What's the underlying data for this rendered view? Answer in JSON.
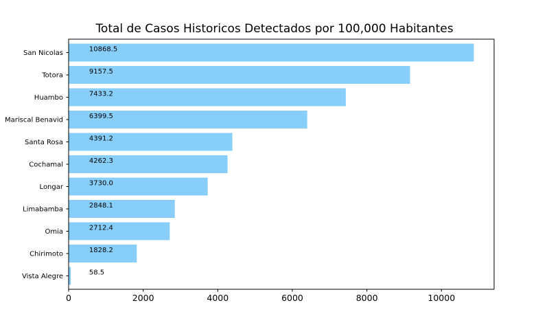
{
  "chart_data": {
    "type": "bar",
    "orientation": "horizontal",
    "title": "Total de Casos Historicos Detectados por 100,000 Habitantes",
    "xlabel": "",
    "ylabel": "",
    "categories": [
      "San Nicolas",
      "Totora",
      "Huambo",
      "Mariscal Benavid",
      "Santa Rosa",
      "Cochamal",
      "Longar",
      "Limabamba",
      "Omia",
      "Chirimoto",
      "Vista Alegre"
    ],
    "values": [
      10868.5,
      9157.5,
      7433.2,
      6399.5,
      4391.2,
      4262.3,
      3730.0,
      2848.1,
      2712.4,
      1828.2,
      58.5
    ],
    "labels": [
      "10868.5",
      "9157.5",
      "7433.2",
      "6399.5",
      "4391.2",
      "4262.3",
      "3730.0",
      "2848.1",
      "2712.4",
      "1828.2",
      "58.5"
    ],
    "xlim": [
      0,
      11412
    ],
    "xticks": [
      0,
      2000,
      4000,
      6000,
      8000,
      10000
    ],
    "xtick_labels": [
      "0",
      "2000",
      "4000",
      "6000",
      "8000",
      "10000"
    ],
    "grid": false,
    "bar_color": "#87cefa"
  }
}
